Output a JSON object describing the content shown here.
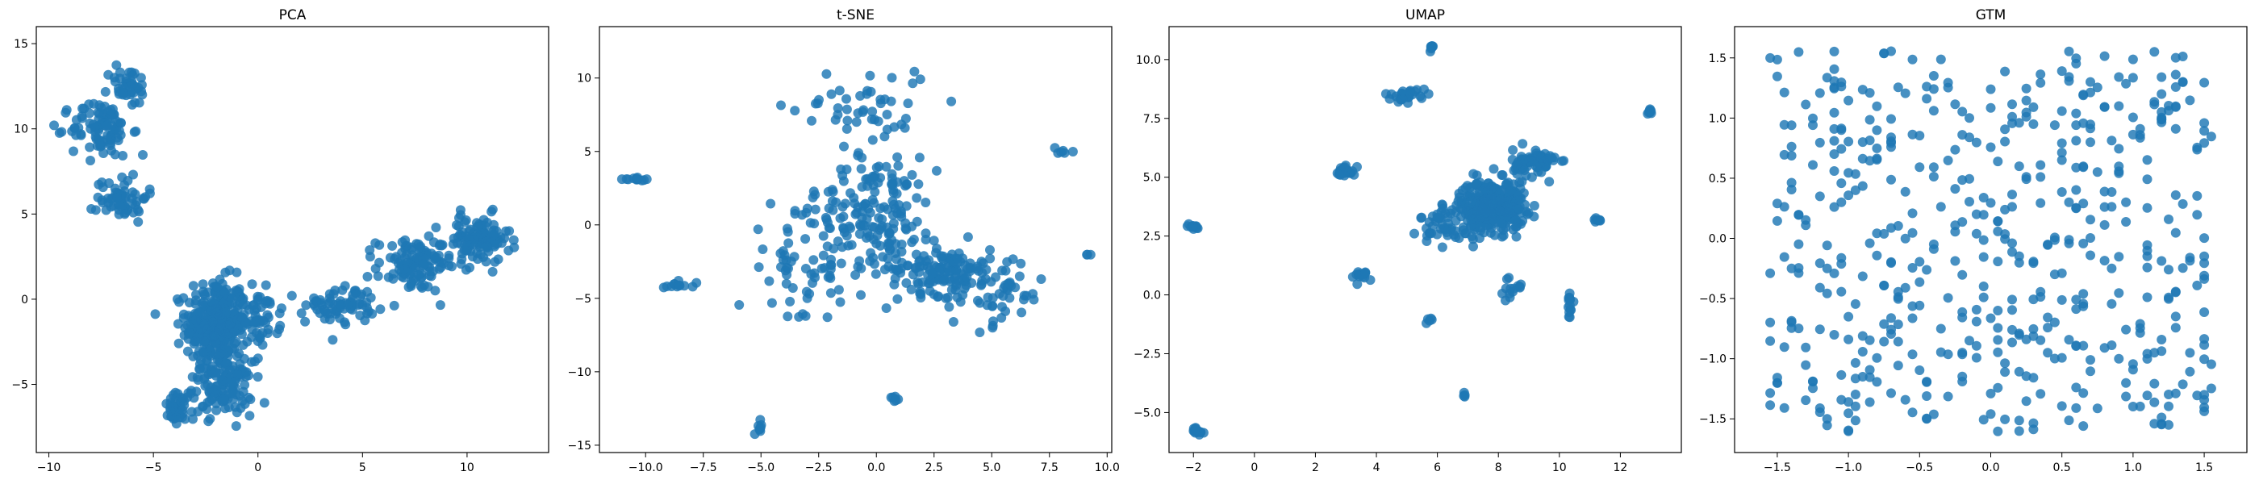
{
  "chart_data": [
    {
      "type": "scatter",
      "title": "PCA",
      "xlabel": "",
      "ylabel": "",
      "xlim": [
        -10.6,
        13.9
      ],
      "ylim": [
        -9.0,
        16.0
      ],
      "xticks": [
        -10,
        -5,
        0,
        5,
        10
      ],
      "yticks": [
        -5,
        0,
        5,
        10,
        15
      ],
      "color": "#1f77b4",
      "grid": false,
      "points": [
        {
          "x": -2.0,
          "y": -1.5,
          "spread": [
            1.2,
            2.2
          ],
          "count": 340
        },
        {
          "x": -1.7,
          "y": -5.2,
          "spread": [
            1.2,
            1.3
          ],
          "count": 120
        },
        {
          "x": -3.8,
          "y": -6.5,
          "spread": [
            0.6,
            0.8
          ],
          "count": 40
        },
        {
          "x": 0.0,
          "y": -1.0,
          "spread": [
            0.9,
            1.5
          ],
          "count": 60
        },
        {
          "x": 4.0,
          "y": -0.3,
          "spread": [
            1.4,
            0.9
          ],
          "count": 70
        },
        {
          "x": 7.5,
          "y": 2.0,
          "spread": [
            1.5,
            1.3
          ],
          "count": 110
        },
        {
          "x": 10.5,
          "y": 3.5,
          "spread": [
            1.3,
            1.2
          ],
          "count": 110
        },
        {
          "x": -6.5,
          "y": 6.0,
          "spread": [
            1.0,
            1.2
          ],
          "count": 60
        },
        {
          "x": -7.5,
          "y": 10.0,
          "spread": [
            1.2,
            1.4
          ],
          "count": 90
        },
        {
          "x": -6.2,
          "y": 12.5,
          "spread": [
            0.8,
            1.0
          ],
          "count": 40
        }
      ]
    },
    {
      "type": "scatter",
      "title": "t-SNE",
      "xlabel": "",
      "ylabel": "",
      "xlim": [
        -12.0,
        10.2
      ],
      "ylim": [
        -15.5,
        13.5
      ],
      "xticks": [
        -10.0,
        -7.5,
        -5.0,
        -2.5,
        0.0,
        2.5,
        5.0,
        7.5,
        10.0
      ],
      "yticks": [
        -15,
        -10,
        -5,
        0,
        5,
        10
      ],
      "color": "#1f77b4",
      "grid": false,
      "points": [
        {
          "x": 0.0,
          "y": 1.0,
          "spread": [
            2.2,
            3.0
          ],
          "count": 150
        },
        {
          "x": 2.8,
          "y": -3.0,
          "spread": [
            1.8,
            1.4
          ],
          "count": 120
        },
        {
          "x": -3.0,
          "y": -3.0,
          "spread": [
            2.5,
            3.5
          ],
          "count": 70
        },
        {
          "x": 5.0,
          "y": -4.5,
          "spread": [
            2.0,
            2.0
          ],
          "count": 60
        },
        {
          "x": -0.5,
          "y": 8.0,
          "spread": [
            2.5,
            2.5
          ],
          "count": 50
        },
        {
          "x": -10.5,
          "y": 3.1,
          "spread": [
            0.4,
            0.08
          ],
          "count": 12
        },
        {
          "x": -5.0,
          "y": -13.8,
          "spread": [
            0.15,
            0.4
          ],
          "count": 8
        },
        {
          "x": 0.8,
          "y": -11.8,
          "spread": [
            0.15,
            0.15
          ],
          "count": 6
        },
        {
          "x": -8.5,
          "y": -4.0,
          "spread": [
            0.6,
            0.3
          ],
          "count": 12
        },
        {
          "x": 8.0,
          "y": 5.0,
          "spread": [
            0.3,
            0.3
          ],
          "count": 6
        },
        {
          "x": 9.2,
          "y": -2.0,
          "spread": [
            0.1,
            0.1
          ],
          "count": 3
        }
      ]
    },
    {
      "type": "scatter",
      "title": "UMAP",
      "xlabel": "",
      "ylabel": "",
      "xlim": [
        -2.8,
        14.0
      ],
      "ylim": [
        -6.7,
        11.4
      ],
      "xticks": [
        -2,
        0,
        2,
        4,
        6,
        8,
        10,
        12
      ],
      "yticks": [
        -5.0,
        -2.5,
        0.0,
        2.5,
        5.0,
        7.5,
        10.0
      ],
      "color": "#1f77b4",
      "grid": false,
      "points": [
        {
          "x": 7.8,
          "y": 3.8,
          "spread": [
            0.9,
            0.9
          ],
          "count": 320
        },
        {
          "x": 9.2,
          "y": 5.6,
          "spread": [
            0.6,
            0.5
          ],
          "count": 70
        },
        {
          "x": 6.5,
          "y": 3.0,
          "spread": [
            0.9,
            0.8
          ],
          "count": 60
        },
        {
          "x": 5.0,
          "y": 8.5,
          "spread": [
            0.6,
            0.2
          ],
          "count": 30
        },
        {
          "x": 3.0,
          "y": 5.3,
          "spread": [
            0.25,
            0.2
          ],
          "count": 22
        },
        {
          "x": -2.0,
          "y": 2.9,
          "spread": [
            0.2,
            0.1
          ],
          "count": 15
        },
        {
          "x": -1.9,
          "y": -5.8,
          "spread": [
            0.2,
            0.15
          ],
          "count": 15
        },
        {
          "x": 5.8,
          "y": 10.5,
          "spread": [
            0.08,
            0.1
          ],
          "count": 8
        },
        {
          "x": 13.0,
          "y": 7.8,
          "spread": [
            0.1,
            0.1
          ],
          "count": 8
        },
        {
          "x": 10.3,
          "y": -0.5,
          "spread": [
            0.1,
            0.6
          ],
          "count": 14
        },
        {
          "x": 3.5,
          "y": 0.8,
          "spread": [
            0.4,
            0.25
          ],
          "count": 14
        },
        {
          "x": 6.9,
          "y": -4.3,
          "spread": [
            0.08,
            0.1
          ],
          "count": 4
        },
        {
          "x": 11.2,
          "y": 3.2,
          "spread": [
            0.15,
            0.1
          ],
          "count": 8
        },
        {
          "x": 8.5,
          "y": 0.3,
          "spread": [
            0.3,
            0.4
          ],
          "count": 14
        },
        {
          "x": 5.8,
          "y": -1.1,
          "spread": [
            0.1,
            0.1
          ],
          "count": 5
        }
      ]
    },
    {
      "type": "scatter",
      "title": "GTM",
      "xlabel": "",
      "ylabel": "",
      "xlim": [
        -1.8,
        1.8
      ],
      "ylim": [
        -1.78,
        1.76
      ],
      "xticks": [
        -1.5,
        -1.0,
        -0.5,
        0.0,
        0.5,
        1.0,
        1.5
      ],
      "yticks": [
        -1.5,
        -1.0,
        -0.5,
        0.0,
        0.5,
        1.0,
        1.5
      ],
      "color": "#1f77b4",
      "grid": false,
      "points": [
        {
          "x": 0.0,
          "y": 0.0,
          "spread": [
            1.0,
            1.0
          ],
          "count": 520,
          "distribution": "uniform-grid"
        }
      ]
    }
  ]
}
